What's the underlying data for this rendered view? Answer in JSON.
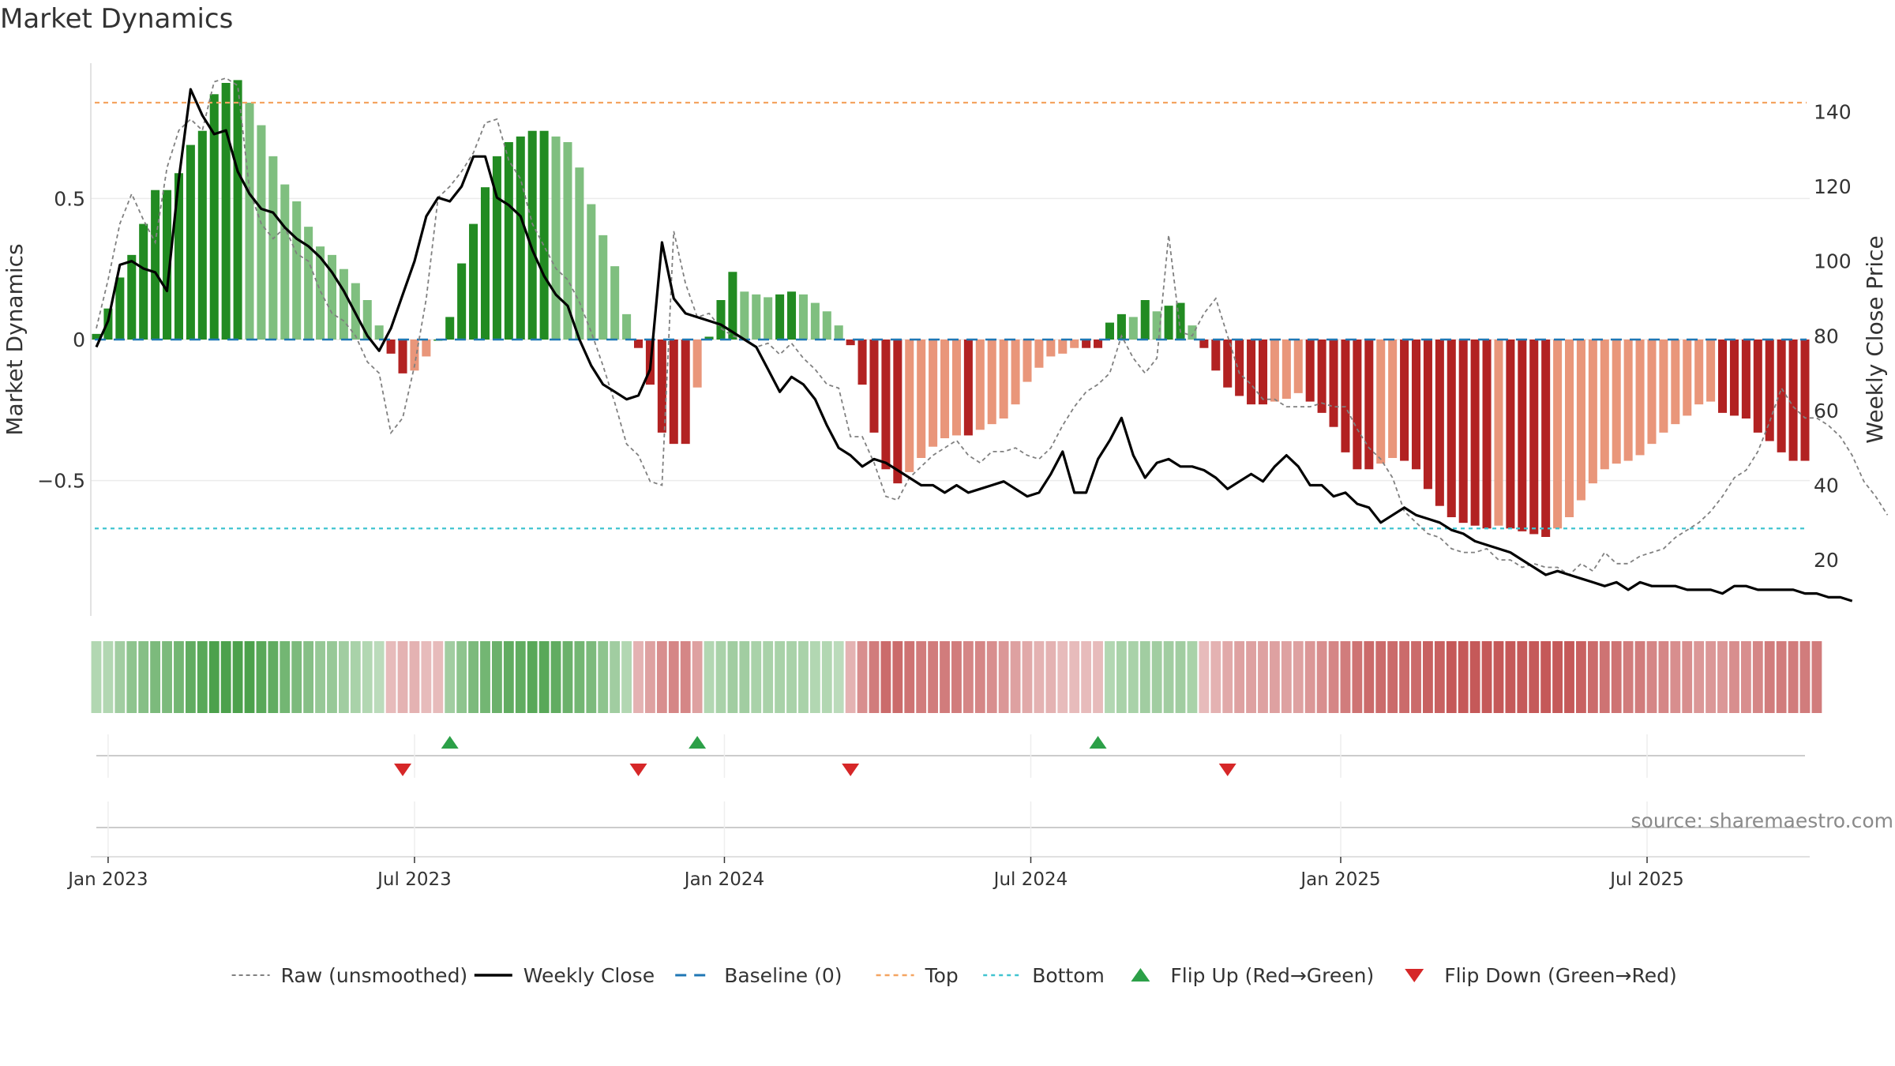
{
  "title": "Market Dynamics",
  "source": "source: sharemaestro.com",
  "colors": {
    "strong_green": "#228B22",
    "light_green": "#7FBF7F",
    "strong_red": "#B22222",
    "light_red": "#E9967A",
    "close": "#000000",
    "raw": "#808080",
    "baseline": "#1F77B4",
    "top": "#F4A460",
    "bottom": "#40C4D0",
    "flip_up": "#2CA048",
    "flip_down": "#D62728"
  },
  "chart_data": {
    "type": "bar",
    "title": "Market Dynamics",
    "ylabel": "Market Dynamics",
    "ylabel_right": "Weekly Close Price",
    "ylim": [
      -0.98,
      0.98
    ],
    "ylim_right": [
      5,
      153
    ],
    "yticks": [
      {
        "value": 0.5,
        "label": "0.5"
      },
      {
        "value": 0,
        "label": "0"
      },
      {
        "value": -0.5,
        "label": "−0.5"
      }
    ],
    "yticks_right": [
      {
        "value": 140,
        "label": "140"
      },
      {
        "value": 120,
        "label": "120"
      },
      {
        "value": 100,
        "label": "100"
      },
      {
        "value": 80,
        "label": "80"
      },
      {
        "value": 60,
        "label": "60"
      },
      {
        "value": 40,
        "label": "40"
      },
      {
        "value": 20,
        "label": "20"
      }
    ],
    "xticks": [
      "Jan 2023",
      "Jul 2023",
      "Jan 2024",
      "Jul 2024",
      "Jan 2025",
      "Jul 2025"
    ],
    "top_level": 0.84,
    "bottom_level": -0.67,
    "grid": true,
    "legend_position": "bottom-center",
    "dynamics": [
      0.02,
      0.11,
      0.22,
      0.3,
      0.41,
      0.53,
      0.53,
      0.59,
      0.69,
      0.74,
      0.87,
      0.91,
      0.92,
      0.84,
      0.76,
      0.65,
      0.55,
      0.49,
      0.4,
      0.33,
      0.3,
      0.25,
      0.2,
      0.14,
      0.05,
      -0.05,
      -0.12,
      -0.11,
      -0.06,
      0.0,
      0.08,
      0.27,
      0.41,
      0.54,
      0.65,
      0.7,
      0.72,
      0.74,
      0.74,
      0.72,
      0.7,
      0.61,
      0.48,
      0.37,
      0.26,
      0.09,
      -0.03,
      -0.16,
      -0.33,
      -0.37,
      -0.37,
      -0.17,
      0.01,
      0.14,
      0.24,
      0.17,
      0.16,
      0.15,
      0.16,
      0.17,
      0.16,
      0.13,
      0.1,
      0.05,
      -0.02,
      -0.16,
      -0.33,
      -0.46,
      -0.51,
      -0.47,
      -0.42,
      -0.38,
      -0.35,
      -0.34,
      -0.34,
      -0.32,
      -0.3,
      -0.28,
      -0.23,
      -0.15,
      -0.1,
      -0.06,
      -0.05,
      -0.03,
      -0.03,
      -0.03,
      0.06,
      0.09,
      0.08,
      0.14,
      0.1,
      0.12,
      0.13,
      0.05,
      -0.03,
      -0.11,
      -0.17,
      -0.2,
      -0.23,
      -0.23,
      -0.22,
      -0.21,
      -0.19,
      -0.22,
      -0.26,
      -0.31,
      -0.4,
      -0.46,
      -0.46,
      -0.44,
      -0.42,
      -0.43,
      -0.46,
      -0.53,
      -0.59,
      -0.63,
      -0.65,
      -0.66,
      -0.67,
      -0.66,
      -0.67,
      -0.68,
      -0.69,
      -0.7,
      -0.67,
      -0.63,
      -0.57,
      -0.51,
      -0.46,
      -0.44,
      -0.43,
      -0.41,
      -0.37,
      -0.33,
      -0.3,
      -0.27,
      -0.23,
      -0.22,
      -0.26,
      -0.27,
      -0.28,
      -0.33,
      -0.36,
      -0.4,
      -0.43,
      -0.43
    ],
    "close": [
      77,
      84,
      99,
      100,
      98,
      97,
      92,
      122,
      146,
      139,
      134,
      135,
      124,
      118,
      114,
      113,
      109,
      106,
      104,
      101,
      97,
      92,
      86,
      80,
      76,
      82,
      91,
      100,
      112,
      117,
      116,
      120,
      128,
      128,
      117,
      115,
      112,
      103,
      96,
      91,
      88,
      79,
      72,
      67,
      65,
      63,
      64,
      71,
      105,
      90,
      86,
      85,
      84,
      83,
      81,
      79,
      77,
      71,
      65,
      69,
      67,
      63,
      56,
      50,
      48,
      45,
      47,
      46,
      44,
      42,
      40,
      40,
      38,
      40,
      38,
      39,
      40,
      41,
      39,
      37,
      38,
      43,
      49,
      38,
      38,
      47,
      52,
      58,
      48,
      42,
      46,
      47,
      45,
      45,
      44,
      42,
      39,
      41,
      43,
      41,
      45,
      48,
      45,
      40,
      40,
      37,
      38,
      35,
      34,
      30,
      32,
      34,
      32,
      31,
      30,
      28,
      27,
      25,
      24,
      23,
      22,
      20,
      18,
      16,
      17,
      16,
      15,
      14,
      13,
      14,
      12,
      14,
      13,
      13,
      13,
      12,
      12,
      12,
      11,
      13,
      13,
      12,
      12,
      12,
      12,
      11,
      11,
      10,
      10,
      9
    ],
    "raw": [
      82,
      95,
      110,
      118,
      111,
      105,
      125,
      135,
      138,
      135,
      148,
      149,
      147,
      119,
      110,
      106,
      109,
      102,
      100,
      92,
      86,
      84,
      80,
      73,
      70,
      54,
      58,
      72,
      90,
      117,
      120,
      124,
      129,
      137,
      138,
      127,
      122,
      110,
      104,
      98,
      95,
      89,
      81,
      72,
      62,
      51,
      48,
      41,
      40,
      108,
      94,
      85,
      86,
      82,
      80,
      79,
      77,
      78,
      75,
      78,
      74,
      71,
      67,
      66,
      53,
      53,
      46,
      37,
      36,
      42,
      45,
      48,
      50,
      52,
      48,
      46,
      49,
      49,
      50,
      48,
      47,
      50,
      56,
      61,
      65,
      67,
      70,
      80,
      74,
      70,
      74,
      107,
      81,
      80,
      86,
      90,
      80,
      70,
      67,
      63,
      63,
      61,
      61,
      61,
      62,
      61,
      61,
      55,
      50,
      47,
      42,
      33,
      30,
      27,
      26,
      23,
      22,
      22,
      23,
      20,
      20,
      18,
      19,
      18,
      18,
      16,
      19,
      17,
      22,
      19,
      19,
      21,
      22,
      23,
      26,
      28,
      30,
      33,
      37,
      42,
      44,
      49,
      57,
      66,
      61,
      58,
      58,
      56,
      53,
      48,
      41,
      37,
      32
    ]
  },
  "regime_strip": [
    0.2,
    0.2,
    0.3,
    0.4,
    0.45,
    0.5,
    0.5,
    0.55,
    0.65,
    0.7,
    0.8,
    0.85,
    0.85,
    0.8,
    0.7,
    0.65,
    0.55,
    0.5,
    0.45,
    0.35,
    0.35,
    0.3,
    0.25,
    0.2,
    0.15,
    -0.15,
    -0.2,
    -0.2,
    -0.15,
    -0.15,
    0.3,
    0.4,
    0.5,
    0.55,
    0.6,
    0.65,
    0.65,
    0.7,
    0.7,
    0.65,
    0.6,
    0.55,
    0.5,
    0.4,
    0.3,
    0.2,
    -0.2,
    -0.3,
    -0.4,
    -0.45,
    -0.45,
    -0.3,
    0.2,
    0.25,
    0.3,
    0.3,
    0.25,
    0.25,
    0.25,
    0.25,
    0.25,
    0.2,
    0.2,
    0.15,
    -0.2,
    -0.4,
    -0.5,
    -0.6,
    -0.6,
    -0.55,
    -0.5,
    -0.5,
    -0.5,
    -0.5,
    -0.45,
    -0.45,
    -0.4,
    -0.35,
    -0.3,
    -0.25,
    -0.2,
    -0.2,
    -0.15,
    -0.15,
    -0.15,
    -0.15,
    0.2,
    0.25,
    0.25,
    0.3,
    0.3,
    0.3,
    0.3,
    0.25,
    -0.15,
    -0.2,
    -0.25,
    -0.3,
    -0.3,
    -0.3,
    -0.3,
    -0.3,
    -0.3,
    -0.35,
    -0.4,
    -0.45,
    -0.5,
    -0.55,
    -0.6,
    -0.6,
    -0.6,
    -0.6,
    -0.6,
    -0.65,
    -0.65,
    -0.7,
    -0.7,
    -0.7,
    -0.7,
    -0.7,
    -0.7,
    -0.7,
    -0.7,
    -0.7,
    -0.7,
    -0.7,
    -0.65,
    -0.6,
    -0.55,
    -0.55,
    -0.5,
    -0.5,
    -0.45,
    -0.45,
    -0.4,
    -0.4,
    -0.35,
    -0.35,
    -0.35,
    -0.4,
    -0.4,
    -0.45,
    -0.5,
    -0.5,
    -0.5,
    -0.5,
    -0.5
  ],
  "flips": {
    "up_weeks": [
      30,
      51,
      85
    ],
    "down_weeks": [
      26,
      46,
      64,
      96
    ]
  },
  "legend": [
    {
      "key": "raw",
      "label": "Raw (unsmoothed)"
    },
    {
      "key": "close",
      "label": "Weekly Close"
    },
    {
      "key": "baseline",
      "label": "Baseline (0)"
    },
    {
      "key": "top",
      "label": "Top"
    },
    {
      "key": "bottom",
      "label": "Bottom"
    },
    {
      "key": "flip_up",
      "label": "Flip Up (Red→Green)"
    },
    {
      "key": "flip_down",
      "label": "Flip Down (Green→Red)"
    }
  ]
}
